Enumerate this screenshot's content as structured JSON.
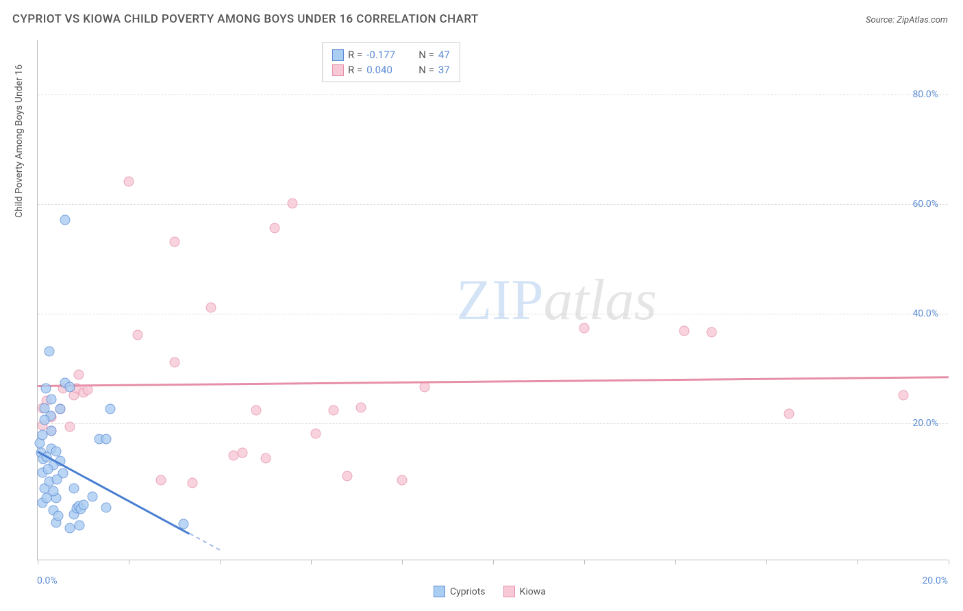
{
  "title": "CYPRIOT VS KIOWA CHILD POVERTY AMONG BOYS UNDER 16 CORRELATION CHART",
  "source_text": "Source: ZipAtlas.com",
  "watermark": {
    "part1": "ZIP",
    "part2": "atlas"
  },
  "chart": {
    "type": "scatter",
    "xlim": [
      0,
      20
    ],
    "ylim": [
      -5,
      90
    ],
    "y_ticks": [
      20,
      40,
      60,
      80
    ],
    "y_tick_labels": [
      "20.0%",
      "40.0%",
      "60.0%",
      "80.0%"
    ],
    "x_tick_positions": [
      0,
      2,
      4,
      6,
      8,
      10,
      12,
      14,
      16,
      18,
      20
    ],
    "x_label_min": "0.0%",
    "x_label_max": "20.0%",
    "y_axis_title": "Child Poverty Among Boys Under 16",
    "grid_color": "#dddddd",
    "axis_color": "#bbbbbb",
    "background": "#ffffff",
    "label_color": "#5b8bd4",
    "series": {
      "cypriots": {
        "label": "Cypriots",
        "fill": "#aacdf2",
        "stroke": "#5b8bd4",
        "line_color": "#4a7fd1",
        "points": [
          [
            0.05,
            16.2
          ],
          [
            0.08,
            14.5
          ],
          [
            0.1,
            17.8
          ],
          [
            0.12,
            13.4
          ],
          [
            0.1,
            10.9
          ],
          [
            0.15,
            8.0
          ],
          [
            0.1,
            5.4
          ],
          [
            0.15,
            22.6
          ],
          [
            0.2,
            13.8
          ],
          [
            0.25,
            33.0
          ],
          [
            0.28,
            21.2
          ],
          [
            0.3,
            24.2
          ],
          [
            0.3,
            15.2
          ],
          [
            0.35,
            12.2
          ],
          [
            0.4,
            14.8
          ],
          [
            0.4,
            6.2
          ],
          [
            0.35,
            4.0
          ],
          [
            0.5,
            22.5
          ],
          [
            0.6,
            57.0
          ],
          [
            0.6,
            27.2
          ],
          [
            0.7,
            26.5
          ],
          [
            0.8,
            3.3
          ],
          [
            0.85,
            4.4
          ],
          [
            0.9,
            4.8
          ],
          [
            0.95,
            4.2
          ],
          [
            1.0,
            5.0
          ],
          [
            0.92,
            1.2
          ],
          [
            0.8,
            8.0
          ],
          [
            0.4,
            1.8
          ],
          [
            0.35,
            7.5
          ],
          [
            1.2,
            6.5
          ],
          [
            1.35,
            17.0
          ],
          [
            1.5,
            17.0
          ],
          [
            1.6,
            22.5
          ],
          [
            1.5,
            4.5
          ],
          [
            3.2,
            1.5
          ],
          [
            0.25,
            9.2
          ],
          [
            0.2,
            6.2
          ],
          [
            0.3,
            18.5
          ],
          [
            0.55,
            10.8
          ],
          [
            0.5,
            13.0
          ],
          [
            0.45,
            3.0
          ],
          [
            0.18,
            26.2
          ],
          [
            0.15,
            20.5
          ],
          [
            0.22,
            11.5
          ],
          [
            0.42,
            9.6
          ],
          [
            0.7,
            0.8
          ]
        ],
        "trend": {
          "x1": 0,
          "y1": 15.0,
          "x2": 4.0,
          "y2": -3.0
        }
      },
      "kiowa": {
        "label": "Kiowa",
        "fill": "#f7c9d6",
        "stroke": "#e68fa8",
        "line_color": "#e68fa8",
        "points": [
          [
            0.1,
            22.6
          ],
          [
            0.1,
            19.5
          ],
          [
            0.2,
            24.0
          ],
          [
            0.3,
            21.0
          ],
          [
            0.5,
            22.5
          ],
          [
            0.55,
            26.2
          ],
          [
            0.7,
            19.2
          ],
          [
            0.8,
            25.0
          ],
          [
            0.85,
            26.3
          ],
          [
            0.9,
            28.8
          ],
          [
            1.0,
            25.5
          ],
          [
            1.1,
            26.0
          ],
          [
            2.0,
            64.0
          ],
          [
            2.2,
            36.0
          ],
          [
            2.7,
            9.5
          ],
          [
            3.0,
            53.0
          ],
          [
            3.0,
            31.0
          ],
          [
            3.4,
            9.0
          ],
          [
            3.8,
            41.0
          ],
          [
            4.3,
            14.0
          ],
          [
            4.5,
            14.5
          ],
          [
            4.8,
            22.2
          ],
          [
            5.0,
            13.5
          ],
          [
            5.2,
            55.5
          ],
          [
            5.6,
            60.0
          ],
          [
            6.1,
            18.0
          ],
          [
            6.5,
            22.3
          ],
          [
            6.8,
            10.2
          ],
          [
            7.1,
            22.8
          ],
          [
            8.0,
            9.5
          ],
          [
            8.5,
            26.5
          ],
          [
            12.0,
            37.3
          ],
          [
            14.2,
            36.8
          ],
          [
            14.8,
            36.5
          ],
          [
            16.5,
            21.6
          ],
          [
            19.0,
            25.0
          ],
          [
            0.3,
            18.5
          ]
        ],
        "trend": {
          "x1": 0,
          "y1": 27.0,
          "x2": 20.0,
          "y2": 28.6
        }
      }
    }
  },
  "correlation_box": {
    "rows": [
      {
        "series": "cypriots",
        "r_label": "R =",
        "r_value": "-0.177",
        "n_label": "N =",
        "n_value": "47"
      },
      {
        "series": "kiowa",
        "r_label": "R =",
        "r_value": "0.040",
        "n_label": "N =",
        "n_value": "37"
      }
    ]
  },
  "legend_bottom": [
    {
      "series": "cypriots",
      "label": "Cypriots"
    },
    {
      "series": "kiowa",
      "label": "Kiowa"
    }
  ],
  "marker_size": 15
}
